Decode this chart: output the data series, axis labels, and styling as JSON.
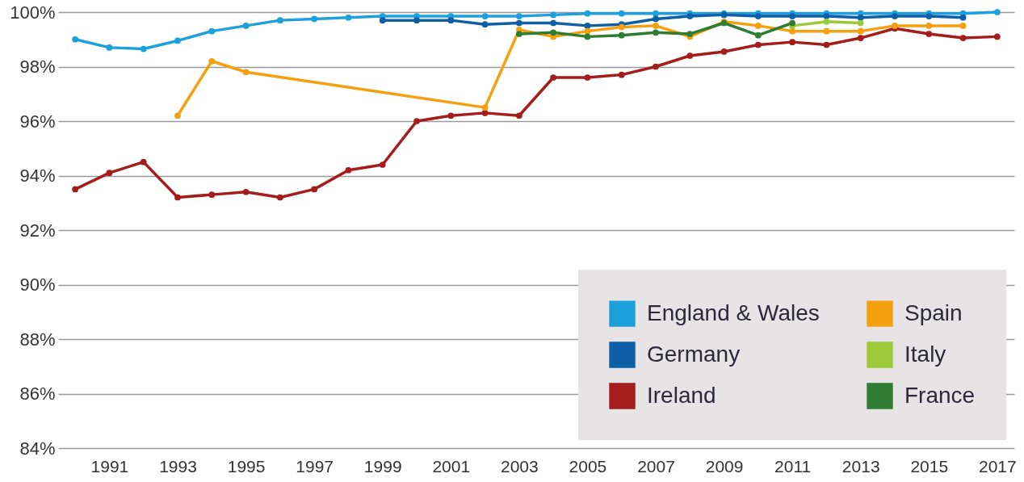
{
  "chart_data": {
    "type": "line",
    "xlim": [
      1989.5,
      2017.5
    ],
    "xticks": [
      1991,
      1993,
      1995,
      1997,
      1999,
      2001,
      2003,
      2005,
      2007,
      2009,
      2011,
      2013,
      2015,
      2017
    ],
    "ylim": [
      84,
      100
    ],
    "yticks": [
      {
        "value": 84,
        "label": "84%"
      },
      {
        "value": 86,
        "label": "86%"
      },
      {
        "value": 88,
        "label": "88%"
      },
      {
        "value": 90,
        "label": "90%"
      },
      {
        "value": 92,
        "label": "92%"
      },
      {
        "value": 94,
        "label": "94%"
      },
      {
        "value": 96,
        "label": "96%"
      },
      {
        "value": 98,
        "label": "98%"
      },
      {
        "value": 100,
        "label": "100%"
      }
    ],
    "grid": "y",
    "legend": "bottom right",
    "marker": "circle",
    "series": [
      {
        "name": "England & Wales",
        "color": "#1ea0dc",
        "x": [
          1990,
          1991,
          1992,
          1993,
          1994,
          1995,
          1996,
          1997,
          1998,
          1999,
          2000,
          2001,
          2002,
          2003,
          2004,
          2005,
          2006,
          2007,
          2008,
          2009,
          2010,
          2011,
          2012,
          2013,
          2014,
          2015,
          2016,
          2017
        ],
        "values": [
          99.0,
          98.7,
          98.65,
          98.95,
          99.3,
          99.5,
          99.7,
          99.75,
          99.8,
          99.85,
          99.85,
          99.85,
          99.85,
          99.85,
          99.9,
          99.95,
          99.95,
          99.95,
          99.95,
          99.95,
          99.95,
          99.95,
          99.95,
          99.95,
          99.95,
          99.95,
          99.95,
          100
        ]
      },
      {
        "name": "Germany",
        "color": "#0f5fa6",
        "x": [
          1999,
          2000,
          2001,
          2002,
          2003,
          2004,
          2005,
          2006,
          2007,
          2008,
          2009,
          2010,
          2011,
          2012,
          2013,
          2014,
          2015,
          2016
        ],
        "values": [
          99.7,
          99.7,
          99.7,
          99.55,
          99.6,
          99.6,
          99.5,
          99.55,
          99.75,
          99.85,
          99.9,
          99.85,
          99.85,
          99.85,
          99.8,
          99.85,
          99.85,
          99.8
        ]
      },
      {
        "name": "Ireland",
        "color": "#a51c1c",
        "x": [
          1990,
          1991,
          1992,
          1993,
          1994,
          1995,
          1996,
          1997,
          1998,
          1999,
          2000,
          2001,
          2002,
          2003,
          2004,
          2005,
          2006,
          2007,
          2008,
          2009,
          2010,
          2011,
          2012,
          2013,
          2014,
          2015,
          2016,
          2017
        ],
        "values": [
          93.5,
          94.1,
          94.5,
          93.2,
          93.3,
          93.4,
          93.2,
          93.5,
          94.2,
          94.4,
          96.0,
          96.2,
          96.3,
          96.2,
          97.6,
          97.6,
          97.7,
          98.0,
          98.4,
          98.55,
          98.8,
          98.9,
          98.8,
          99.05,
          99.4,
          99.2,
          99.05,
          99.1
        ]
      },
      {
        "name": "Spain",
        "color": "#f5a00f",
        "x": [
          1993,
          1994,
          1995,
          2002,
          2003,
          2004,
          2005,
          2006,
          2007,
          2008,
          2009,
          2010,
          2011,
          2012,
          2013,
          2014,
          2015,
          2016
        ],
        "values": [
          96.2,
          98.2,
          97.8,
          96.5,
          99.35,
          99.1,
          99.3,
          99.45,
          99.5,
          99.1,
          99.65,
          99.5,
          99.3,
          99.3,
          99.3,
          99.5,
          99.5,
          99.5
        ]
      },
      {
        "name": "Italy",
        "color": "#9dc83a",
        "x": [
          2011,
          2012,
          2013
        ],
        "values": [
          99.5,
          99.65,
          99.6
        ]
      },
      {
        "name": "France",
        "color": "#2e7d32",
        "x": [
          2003,
          2004,
          2005,
          2006,
          2007,
          2008,
          2009,
          2010,
          2011
        ],
        "values": [
          99.2,
          99.25,
          99.1,
          99.15,
          99.25,
          99.2,
          99.6,
          99.15,
          99.6
        ]
      }
    ]
  }
}
